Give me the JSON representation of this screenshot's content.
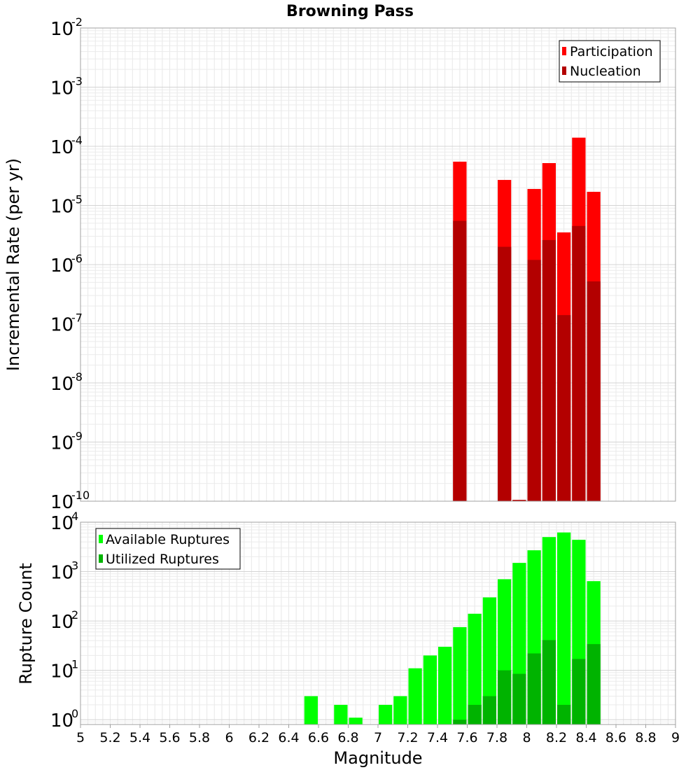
{
  "title": "Browning Pass",
  "chart_data": [
    {
      "type": "bar",
      "name": "rate-panel",
      "yscale": "log",
      "ylabel": "Incremental Rate (per yr)",
      "ylim": [
        1e-10,
        0.01
      ],
      "yticks": [
        {
          "base": "10",
          "exp": "-10",
          "value": 1e-10
        },
        {
          "base": "10",
          "exp": "-9",
          "value": 1e-09
        },
        {
          "base": "10",
          "exp": "-8",
          "value": 1e-08
        },
        {
          "base": "10",
          "exp": "-7",
          "value": 1e-07
        },
        {
          "base": "10",
          "exp": "-6",
          "value": 1e-06
        },
        {
          "base": "10",
          "exp": "-5",
          "value": 1e-05
        },
        {
          "base": "10",
          "exp": "-4",
          "value": 0.0001
        },
        {
          "base": "10",
          "exp": "-3",
          "value": 0.001
        },
        {
          "base": "10",
          "exp": "-2",
          "value": 0.01
        }
      ],
      "legend": {
        "position": "top-right",
        "entries": [
          "Participation",
          "Nucleation"
        ]
      },
      "series": [
        {
          "name": "Participation",
          "color": "#ff0000",
          "points": [
            {
              "x": 7.55,
              "y": 5.5e-05
            },
            {
              "x": 7.85,
              "y": 2.7e-05
            },
            {
              "x": 7.95,
              "y": 1.05e-10
            },
            {
              "x": 8.05,
              "y": 1.9e-05
            },
            {
              "x": 8.15,
              "y": 5.2e-05
            },
            {
              "x": 8.25,
              "y": 3.5e-06
            },
            {
              "x": 8.35,
              "y": 0.00014
            },
            {
              "x": 8.45,
              "y": 1.7e-05
            }
          ]
        },
        {
          "name": "Nucleation",
          "color": "#b30000",
          "points": [
            {
              "x": 7.55,
              "y": 5.5e-06
            },
            {
              "x": 7.85,
              "y": 2e-06
            },
            {
              "x": 7.95,
              "y": 1.05e-10
            },
            {
              "x": 8.05,
              "y": 1.2e-06
            },
            {
              "x": 8.15,
              "y": 2.6e-06
            },
            {
              "x": 8.25,
              "y": 1.4e-07
            },
            {
              "x": 8.35,
              "y": 4.5e-06
            },
            {
              "x": 8.45,
              "y": 5.2e-07
            }
          ]
        }
      ]
    },
    {
      "type": "bar",
      "name": "count-panel",
      "yscale": "log",
      "xlabel": "Magnitude",
      "ylabel": "Rupture Count",
      "xlim": [
        5,
        9
      ],
      "ylim": [
        0.8,
        10000
      ],
      "xticks": [
        "5",
        "5.2",
        "5.4",
        "5.6",
        "5.8",
        "6",
        "6.2",
        "6.4",
        "6.6",
        "6.8",
        "7",
        "7.2",
        "7.4",
        "7.6",
        "7.8",
        "8",
        "8.2",
        "8.4",
        "8.6",
        "8.8",
        "9"
      ],
      "yticks": [
        {
          "base": "10",
          "exp": "0",
          "value": 1
        },
        {
          "base": "10",
          "exp": "1",
          "value": 10
        },
        {
          "base": "10",
          "exp": "2",
          "value": 100
        },
        {
          "base": "10",
          "exp": "3",
          "value": 1000
        },
        {
          "base": "10",
          "exp": "4",
          "value": 10000
        }
      ],
      "legend": {
        "position": "top-left",
        "entries": [
          "Available Ruptures",
          "Utilized Ruptures"
        ]
      },
      "series": [
        {
          "name": "Available Ruptures",
          "color": "#00ff00",
          "points": [
            {
              "x": 6.55,
              "y": 3
            },
            {
              "x": 6.75,
              "y": 2
            },
            {
              "x": 6.85,
              "y": 1.1
            },
            {
              "x": 7.05,
              "y": 2
            },
            {
              "x": 7.15,
              "y": 3
            },
            {
              "x": 7.25,
              "y": 11
            },
            {
              "x": 7.35,
              "y": 20
            },
            {
              "x": 7.45,
              "y": 30
            },
            {
              "x": 7.55,
              "y": 75
            },
            {
              "x": 7.65,
              "y": 140
            },
            {
              "x": 7.75,
              "y": 300
            },
            {
              "x": 7.85,
              "y": 700
            },
            {
              "x": 7.95,
              "y": 1500
            },
            {
              "x": 8.05,
              "y": 2700
            },
            {
              "x": 8.15,
              "y": 5000
            },
            {
              "x": 8.25,
              "y": 6200
            },
            {
              "x": 8.35,
              "y": 4400
            },
            {
              "x": 8.45,
              "y": 640
            }
          ]
        },
        {
          "name": "Utilized Ruptures",
          "color": "#00b300",
          "points": [
            {
              "x": 7.55,
              "y": 1
            },
            {
              "x": 7.65,
              "y": 2
            },
            {
              "x": 7.75,
              "y": 3
            },
            {
              "x": 7.85,
              "y": 10
            },
            {
              "x": 7.95,
              "y": 8.5
            },
            {
              "x": 8.05,
              "y": 22
            },
            {
              "x": 8.15,
              "y": 41
            },
            {
              "x": 8.25,
              "y": 2
            },
            {
              "x": 8.35,
              "y": 17
            },
            {
              "x": 8.45,
              "y": 34
            }
          ]
        }
      ]
    }
  ]
}
